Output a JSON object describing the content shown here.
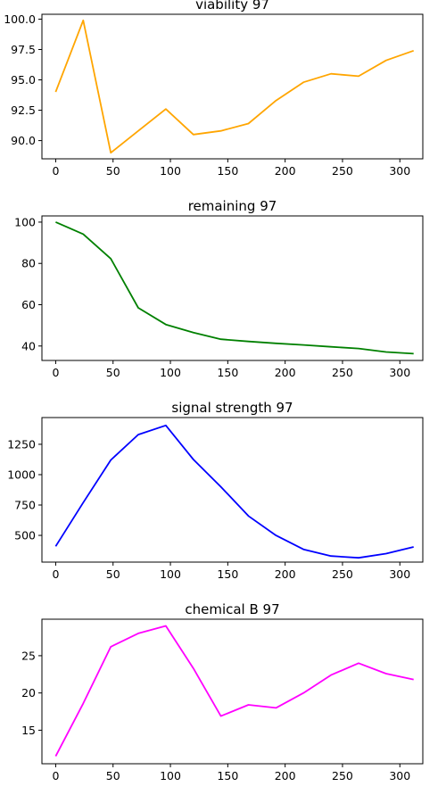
{
  "chart_data": [
    {
      "type": "line",
      "title": "viability 97",
      "xlabel": "",
      "ylabel": "",
      "color": "#ffa500",
      "grid": false,
      "legend": "none",
      "xlim": [
        -12,
        320
      ],
      "ylim": [
        88.5,
        100.4
      ],
      "xticks": [
        0,
        50,
        100,
        150,
        200,
        250,
        300
      ],
      "yticks": [
        90.0,
        92.5,
        95.0,
        97.5,
        100.0
      ],
      "ytick_labels": [
        "90.0",
        "92.5",
        "95.0",
        "97.5",
        "100.0"
      ],
      "x": [
        0,
        24,
        48,
        72,
        96,
        120,
        144,
        168,
        192,
        216,
        240,
        264,
        288,
        312
      ],
      "y": [
        94.0,
        99.9,
        89.0,
        90.8,
        92.6,
        90.5,
        90.8,
        91.4,
        93.3,
        94.8,
        95.5,
        95.3,
        96.6,
        97.4
      ]
    },
    {
      "type": "line",
      "title": "remaining 97",
      "xlabel": "",
      "ylabel": "",
      "color": "#008000",
      "grid": false,
      "legend": "none",
      "xlim": [
        -12,
        320
      ],
      "ylim": [
        33,
        103
      ],
      "xticks": [
        0,
        50,
        100,
        150,
        200,
        250,
        300
      ],
      "yticks": [
        40,
        60,
        80,
        100
      ],
      "ytick_labels": [
        "40",
        "60",
        "80",
        "100"
      ],
      "x": [
        0,
        24,
        48,
        72,
        96,
        120,
        144,
        168,
        192,
        216,
        240,
        264,
        288,
        312
      ],
      "y": [
        100,
        94.2,
        82.3,
        58.5,
        50.4,
        46.5,
        43.3,
        42.2,
        41.3,
        40.5,
        39.6,
        38.8,
        37.1,
        36.3
      ]
    },
    {
      "type": "line",
      "title": "signal strength 97",
      "xlabel": "",
      "ylabel": "",
      "color": "#0000ff",
      "grid": false,
      "legend": "none",
      "xlim": [
        -12,
        320
      ],
      "ylim": [
        280,
        1470
      ],
      "xticks": [
        0,
        50,
        100,
        150,
        200,
        250,
        300
      ],
      "yticks": [
        500,
        750,
        1000,
        1250
      ],
      "ytick_labels": [
        "500",
        "750",
        "1000",
        "1250"
      ],
      "x": [
        0,
        24,
        48,
        72,
        96,
        120,
        144,
        168,
        192,
        216,
        240,
        264,
        288,
        312
      ],
      "y": [
        410,
        770,
        1120,
        1330,
        1405,
        1125,
        900,
        660,
        500,
        385,
        330,
        315,
        350,
        405
      ]
    },
    {
      "type": "line",
      "title": "chemical B 97",
      "xlabel": "",
      "ylabel": "",
      "color": "#ff00ff",
      "grid": false,
      "legend": "none",
      "xlim": [
        -12,
        320
      ],
      "ylim": [
        10.5,
        29.9
      ],
      "xticks": [
        0,
        50,
        100,
        150,
        200,
        250,
        300
      ],
      "yticks": [
        15,
        20,
        25
      ],
      "ytick_labels": [
        "15",
        "20",
        "25"
      ],
      "x": [
        0,
        24,
        48,
        72,
        96,
        120,
        144,
        168,
        192,
        216,
        240,
        264,
        288,
        312
      ],
      "y": [
        11.5,
        18.6,
        26.2,
        28.0,
        29.0,
        23.3,
        16.9,
        18.4,
        18.0,
        20.0,
        22.4,
        24.0,
        22.6,
        21.8
      ]
    }
  ]
}
